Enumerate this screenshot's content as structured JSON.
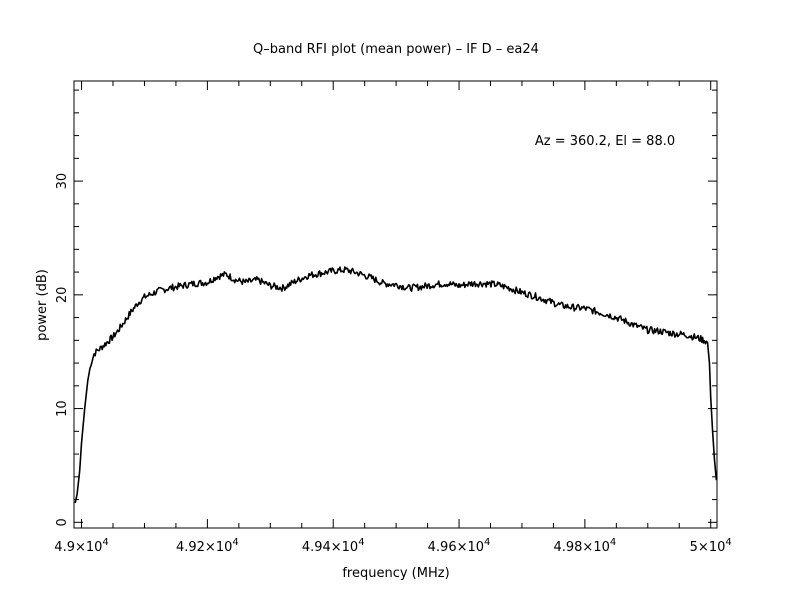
{
  "chart_data": {
    "type": "line",
    "title": "Q–band RFI plot (mean power) – IF D – ea24",
    "xlabel": "frequency (MHz)",
    "ylabel": "power (dB)",
    "annotation": "Az = 360.2, El = 88.0",
    "xlim": [
      48988,
      50010
    ],
    "ylim": [
      -0.5,
      38.8
    ],
    "grid": false,
    "line_color": "#000000",
    "x_ticks": [
      {
        "value": 49000,
        "label": "4.9×10",
        "exp": "4"
      },
      {
        "value": 49200,
        "label": "4.92×10",
        "exp": "4"
      },
      {
        "value": 49400,
        "label": "4.94×10",
        "exp": "4"
      },
      {
        "value": 49600,
        "label": "4.96×10",
        "exp": "4"
      },
      {
        "value": 49800,
        "label": "4.98×10",
        "exp": "4"
      },
      {
        "value": 50000,
        "label": "5×10",
        "exp": "4"
      }
    ],
    "y_ticks": [
      {
        "value": 0,
        "label": "0"
      },
      {
        "value": 10,
        "label": "10"
      },
      {
        "value": 20,
        "label": "20"
      },
      {
        "value": 30,
        "label": "30"
      }
    ],
    "series": [
      {
        "x": [
          48990,
          48993,
          48997,
          49000,
          49005,
          49010,
          49015,
          49020,
          49025,
          49030,
          49040,
          49050,
          49060,
          49070,
          49080,
          49090,
          49100,
          49120,
          49140,
          49160,
          49180,
          49200,
          49215,
          49230,
          49245,
          49260,
          49280,
          49300,
          49320,
          49340,
          49360,
          49380,
          49400,
          49420,
          49440,
          49460,
          49480,
          49500,
          49520,
          49540,
          49560,
          49580,
          49600,
          49620,
          49640,
          49660,
          49680,
          49700,
          49720,
          49740,
          49760,
          49780,
          49800,
          49820,
          49840,
          49860,
          49880,
          49900,
          49920,
          49940,
          49960,
          49980,
          49990,
          49995,
          49998,
          50000,
          50003,
          50006,
          50009
        ],
        "y": [
          1.7,
          2.5,
          4.5,
          7.0,
          10.0,
          12.5,
          14.0,
          14.8,
          15.1,
          15.3,
          15.8,
          16.3,
          17.0,
          17.8,
          18.6,
          19.3,
          19.8,
          20.3,
          20.6,
          20.8,
          21.0,
          21.1,
          21.6,
          21.8,
          21.3,
          21.1,
          21.3,
          20.8,
          20.6,
          21.2,
          21.7,
          21.9,
          22.1,
          22.2,
          21.9,
          21.5,
          21.0,
          20.9,
          20.6,
          20.7,
          20.9,
          21.0,
          20.8,
          21.0,
          21.0,
          20.9,
          20.6,
          20.2,
          19.9,
          19.5,
          19.1,
          18.9,
          18.8,
          18.5,
          18.2,
          17.8,
          17.3,
          16.9,
          16.8,
          16.6,
          16.5,
          16.2,
          16.0,
          15.8,
          14.0,
          11.0,
          8.0,
          5.5,
          3.7
        ]
      }
    ]
  }
}
